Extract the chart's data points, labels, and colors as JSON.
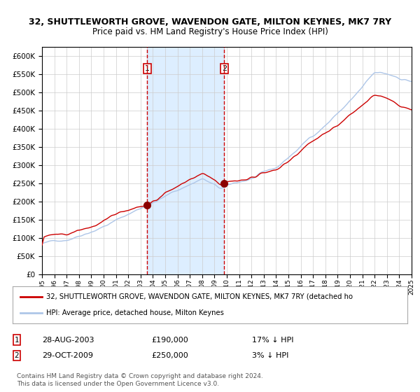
{
  "title": "32, SHUTTLEWORTH GROVE, WAVENDON GATE, MILTON KEYNES, MK7 7RY",
  "subtitle": "Price paid vs. HM Land Registry's House Price Index (HPI)",
  "legend_line1": "32, SHUTTLEWORTH GROVE, WAVENDON GATE, MILTON KEYNES, MK7 7RY (detached ho",
  "legend_line2": "HPI: Average price, detached house, Milton Keynes",
  "sale1_date": "28-AUG-2003",
  "sale1_price": 190000,
  "sale1_label": "1",
  "sale1_pct": "17% ↓ HPI",
  "sale2_date": "29-OCT-2009",
  "sale2_price": 250000,
  "sale2_label": "2",
  "sale2_pct": "3% ↓ HPI",
  "ytick_values": [
    0,
    50000,
    100000,
    150000,
    200000,
    250000,
    300000,
    350000,
    400000,
    450000,
    500000,
    550000,
    600000
  ],
  "ylim": [
    0,
    625000
  ],
  "hpi_color": "#aec6e8",
  "property_color": "#cc0000",
  "shade_color": "#ddeeff",
  "vline_color": "#cc0000",
  "marker_color": "#8b0000",
  "background_color": "#ffffff",
  "grid_color": "#cccccc",
  "footnote": "Contains HM Land Registry data © Crown copyright and database right 2024.\nThis data is licensed under the Open Government Licence v3.0."
}
